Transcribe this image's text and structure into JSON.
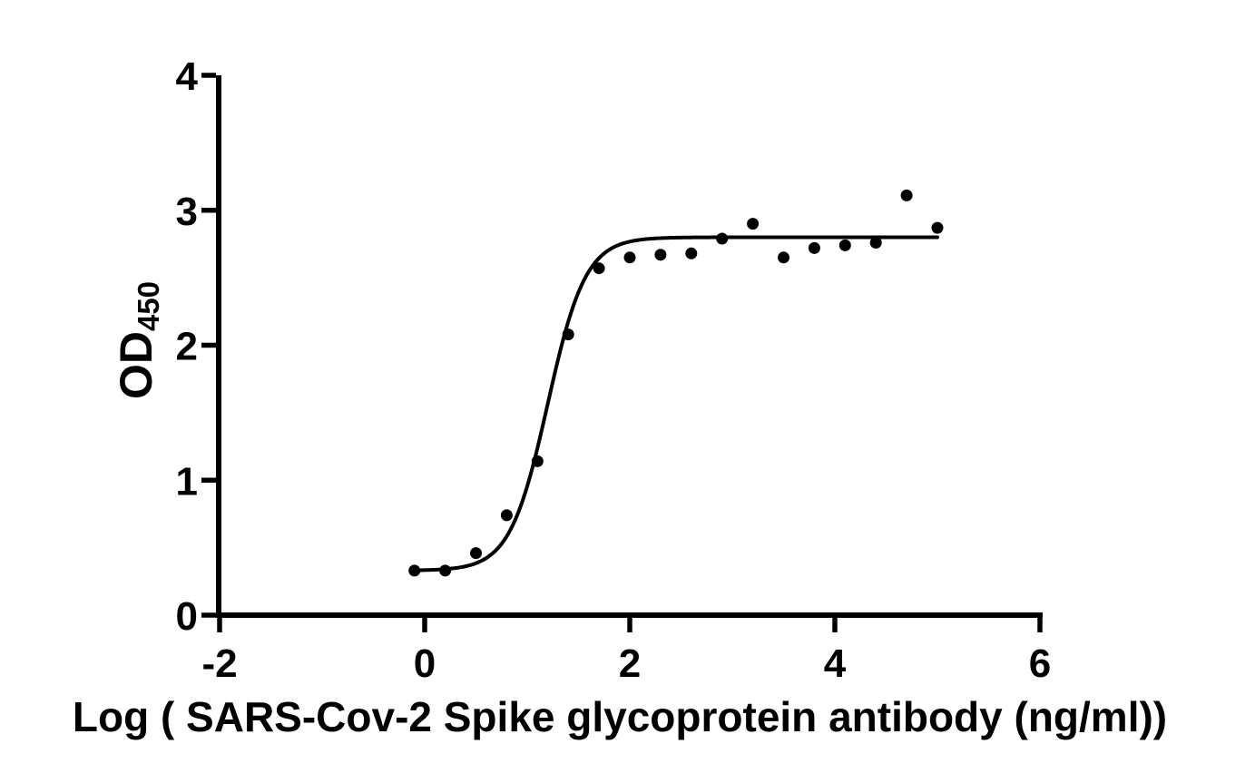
{
  "figure": {
    "background_color": "#ffffff",
    "ink_color": "#000000"
  },
  "chart_data": {
    "type": "scatter",
    "subtype": "sigmoidal-dose-response-fit",
    "title": "",
    "xlabel": "Log ( SARS-Cov-2 Spike glycoprotein antibody (ng/ml))",
    "ylabel": "OD450",
    "ylabel_main": "OD",
    "ylabel_subscript": "450",
    "xlim": [
      -2,
      6
    ],
    "ylim": [
      0,
      4
    ],
    "x_ticks": [
      -2,
      0,
      2,
      4,
      6
    ],
    "y_ticks": [
      0,
      1,
      2,
      3,
      4
    ],
    "grid": false,
    "legend": "none",
    "marker": {
      "shape": "circle",
      "color": "#000000",
      "radius_px": 6.5
    },
    "points": [
      {
        "x": -0.1,
        "y": 0.33
      },
      {
        "x": 0.2,
        "y": 0.33
      },
      {
        "x": 0.5,
        "y": 0.46
      },
      {
        "x": 0.8,
        "y": 0.74
      },
      {
        "x": 1.1,
        "y": 1.14
      },
      {
        "x": 1.4,
        "y": 2.08
      },
      {
        "x": 1.7,
        "y": 2.57
      },
      {
        "x": 2.0,
        "y": 2.65
      },
      {
        "x": 2.3,
        "y": 2.67
      },
      {
        "x": 2.6,
        "y": 2.68
      },
      {
        "x": 2.9,
        "y": 2.79
      },
      {
        "x": 3.2,
        "y": 2.9
      },
      {
        "x": 3.5,
        "y": 2.65
      },
      {
        "x": 3.8,
        "y": 2.72
      },
      {
        "x": 4.1,
        "y": 2.74
      },
      {
        "x": 4.4,
        "y": 2.76
      },
      {
        "x": 4.7,
        "y": 3.11
      },
      {
        "x": 5.0,
        "y": 2.87
      }
    ],
    "fit_curve": {
      "model": "four-parameter-logistic",
      "bottom": 0.33,
      "top": 2.8,
      "log_ec50": 1.2,
      "hill_slope": 2.35,
      "x_start": -0.12,
      "x_end": 5.0,
      "color": "#000000",
      "stroke_px": 4
    }
  }
}
